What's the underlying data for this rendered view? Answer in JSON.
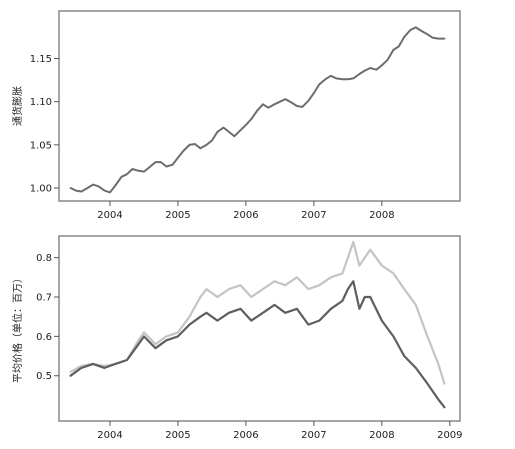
{
  "chart_data": [
    {
      "type": "line",
      "ylabel": "通货膨胀",
      "xlabel": "",
      "xlim": [
        2003.25,
        2009.15
      ],
      "ylim": [
        0.985,
        1.205
      ],
      "x_ticks": [
        2004,
        2005,
        2006,
        2007,
        2008
      ],
      "x_tick_labels": [
        "2004",
        "2005",
        "2006",
        "2007",
        "2008"
      ],
      "y_ticks": [
        1.0,
        1.05,
        1.1,
        1.15
      ],
      "y_tick_labels": [
        "1.00",
        "1.05",
        "1.10",
        "1.15"
      ],
      "grid": false,
      "colors": {
        "line": "#6d6d6d",
        "frame": "#888888"
      },
      "series": [
        {
          "x": [
            2003.42,
            2003.5,
            2003.58,
            2003.67,
            2003.75,
            2003.83,
            2003.92,
            2004.0,
            2004.08,
            2004.17,
            2004.25,
            2004.33,
            2004.42,
            2004.5,
            2004.58,
            2004.67,
            2004.75,
            2004.83,
            2004.92,
            2005.0,
            2005.08,
            2005.17,
            2005.25,
            2005.33,
            2005.42,
            2005.5,
            2005.58,
            2005.67,
            2005.75,
            2005.83,
            2005.92,
            2006.0,
            2006.08,
            2006.17,
            2006.25,
            2006.33,
            2006.42,
            2006.5,
            2006.58,
            2006.67,
            2006.75,
            2006.83,
            2006.92,
            2007.0,
            2007.08,
            2007.17,
            2007.25,
            2007.33,
            2007.42,
            2007.5,
            2007.58,
            2007.67,
            2007.75,
            2007.83,
            2007.92,
            2008.0,
            2008.08,
            2008.17,
            2008.25,
            2008.33,
            2008.42,
            2008.5,
            2008.58,
            2008.67,
            2008.75,
            2008.83,
            2008.92
          ],
          "values": [
            1.0,
            0.997,
            0.996,
            1.0,
            1.004,
            1.002,
            0.997,
            0.995,
            1.003,
            1.013,
            1.016,
            1.022,
            1.02,
            1.019,
            1.024,
            1.03,
            1.03,
            1.025,
            1.027,
            1.035,
            1.043,
            1.05,
            1.051,
            1.046,
            1.05,
            1.055,
            1.065,
            1.07,
            1.065,
            1.06,
            1.067,
            1.073,
            1.08,
            1.09,
            1.097,
            1.093,
            1.097,
            1.1,
            1.103,
            1.099,
            1.095,
            1.094,
            1.101,
            1.11,
            1.12,
            1.126,
            1.13,
            1.127,
            1.126,
            1.126,
            1.127,
            1.132,
            1.136,
            1.139,
            1.137,
            1.142,
            1.148,
            1.16,
            1.164,
            1.175,
            1.183,
            1.186,
            1.182,
            1.178,
            1.174,
            1.173,
            1.173
          ]
        }
      ]
    },
    {
      "type": "line",
      "ylabel": "平均价格（单位：百万）",
      "xlabel": "",
      "xlim": [
        2003.25,
        2009.15
      ],
      "ylim": [
        0.385,
        0.855
      ],
      "x_ticks": [
        2004,
        2005,
        2006,
        2007,
        2008,
        2009
      ],
      "x_tick_labels": [
        "2004",
        "2005",
        "2006",
        "2007",
        "2008",
        "2009"
      ],
      "y_ticks": [
        0.5,
        0.6,
        0.7,
        0.8
      ],
      "y_tick_labels": [
        "0.5",
        "0.6",
        "0.7",
        "0.8"
      ],
      "grid": false,
      "colors": {
        "dark_series": "#5e5e5e",
        "light_series": "#c4c4c4",
        "frame": "#888888"
      },
      "series": [
        {
          "color": "#c4c4c4",
          "x": [
            2003.42,
            2003.58,
            2003.75,
            2003.92,
            2004.08,
            2004.25,
            2004.42,
            2004.5,
            2004.67,
            2004.83,
            2005.0,
            2005.17,
            2005.33,
            2005.42,
            2005.58,
            2005.75,
            2005.92,
            2006.08,
            2006.25,
            2006.42,
            2006.58,
            2006.75,
            2006.92,
            2007.08,
            2007.25,
            2007.42,
            2007.5,
            2007.58,
            2007.67,
            2007.75,
            2007.83,
            2008.0,
            2008.17,
            2008.33,
            2008.5,
            2008.67,
            2008.83,
            2008.92
          ],
          "values": [
            0.51,
            0.525,
            0.53,
            0.525,
            0.53,
            0.54,
            0.59,
            0.61,
            0.58,
            0.6,
            0.61,
            0.65,
            0.7,
            0.72,
            0.7,
            0.72,
            0.73,
            0.7,
            0.72,
            0.74,
            0.73,
            0.75,
            0.72,
            0.73,
            0.75,
            0.76,
            0.8,
            0.84,
            0.78,
            0.8,
            0.82,
            0.78,
            0.76,
            0.72,
            0.68,
            0.6,
            0.53,
            0.48
          ]
        },
        {
          "color": "#5e5e5e",
          "x": [
            2003.42,
            2003.58,
            2003.75,
            2003.92,
            2004.08,
            2004.25,
            2004.42,
            2004.5,
            2004.67,
            2004.83,
            2005.0,
            2005.17,
            2005.33,
            2005.42,
            2005.58,
            2005.75,
            2005.92,
            2006.08,
            2006.25,
            2006.42,
            2006.58,
            2006.75,
            2006.92,
            2007.08,
            2007.25,
            2007.42,
            2007.5,
            2007.58,
            2007.67,
            2007.75,
            2007.83,
            2008.0,
            2008.17,
            2008.33,
            2008.5,
            2008.67,
            2008.83,
            2008.92
          ],
          "values": [
            0.5,
            0.52,
            0.53,
            0.52,
            0.53,
            0.54,
            0.58,
            0.6,
            0.57,
            0.59,
            0.6,
            0.63,
            0.65,
            0.66,
            0.64,
            0.66,
            0.67,
            0.64,
            0.66,
            0.68,
            0.66,
            0.67,
            0.63,
            0.64,
            0.67,
            0.69,
            0.72,
            0.74,
            0.67,
            0.7,
            0.7,
            0.64,
            0.6,
            0.55,
            0.52,
            0.48,
            0.44,
            0.42
          ]
        }
      ]
    }
  ]
}
